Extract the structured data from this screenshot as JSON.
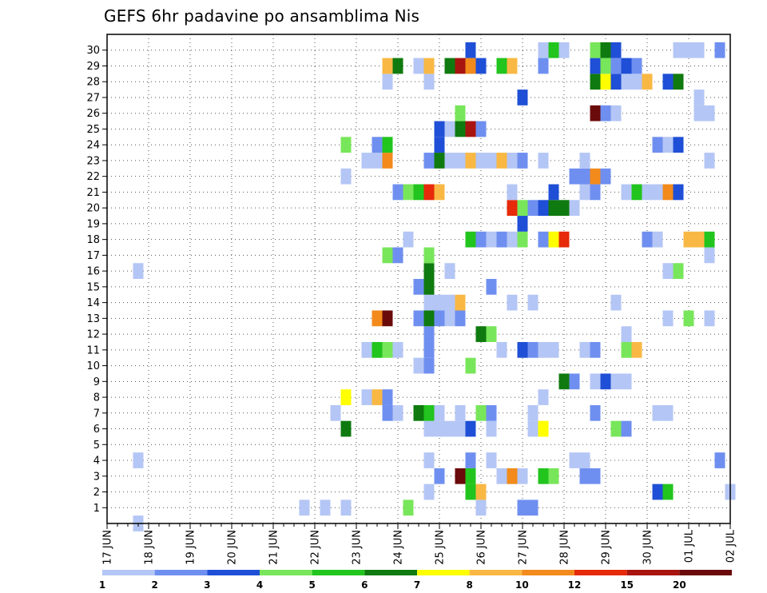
{
  "chart_data": {
    "type": "heatmap",
    "title": "GEFS 6hr padavine po ansamblima Nis",
    "x_ticks": [
      "17 JUN",
      "18 JUN",
      "19 JUN",
      "20 JUN",
      "21 JUN",
      "22 JUN",
      "23 JUN",
      "24 JUN",
      "25 JUN",
      "26 JUN",
      "27 JUN",
      "28 JUN",
      "29 JUN",
      "30 JUN",
      "01 JUL",
      "02 JUL"
    ],
    "y_ticks": [
      "1",
      "2",
      "3",
      "4",
      "5",
      "6",
      "7",
      "8",
      "9",
      "10",
      "11",
      "12",
      "13",
      "14",
      "15",
      "16",
      "17",
      "18",
      "19",
      "20",
      "21",
      "22",
      "23",
      "24",
      "25",
      "26",
      "27",
      "28",
      "29",
      "30"
    ],
    "x_steps_per_day": 4,
    "colorbar": {
      "levels": [
        "1",
        "2",
        "3",
        "4",
        "5",
        "6",
        "7",
        "8",
        "10",
        "12",
        "15",
        "20"
      ],
      "colors": [
        "#b4c6f5",
        "#6f8ff0",
        "#1f4fd6",
        "#78e65a",
        "#22c41e",
        "#0f7a0f",
        "#ffff00",
        "#f9b844",
        "#f28a1c",
        "#e62a0a",
        "#a8140f",
        "#6b0a0a"
      ]
    },
    "cells": [
      [
        3,
        0,
        0
      ],
      [
        19,
        1,
        0
      ],
      [
        21,
        1,
        0
      ],
      [
        23,
        1,
        0
      ],
      [
        29,
        1,
        3
      ],
      [
        36,
        1,
        0
      ],
      [
        40,
        1,
        1
      ],
      [
        41,
        1,
        1
      ],
      [
        31,
        2,
        0
      ],
      [
        35,
        2,
        4
      ],
      [
        36,
        2,
        7
      ],
      [
        53,
        2,
        2
      ],
      [
        54,
        2,
        4
      ],
      [
        60,
        2,
        0
      ],
      [
        32,
        3,
        1
      ],
      [
        34,
        3,
        11
      ],
      [
        35,
        3,
        4
      ],
      [
        38,
        3,
        0
      ],
      [
        39,
        3,
        8
      ],
      [
        40,
        3,
        0
      ],
      [
        42,
        3,
        4
      ],
      [
        43,
        3,
        3
      ],
      [
        46,
        3,
        1
      ],
      [
        47,
        3,
        1
      ],
      [
        3,
        4,
        0
      ],
      [
        31,
        4,
        0
      ],
      [
        35,
        4,
        1
      ],
      [
        37,
        4,
        0
      ],
      [
        45,
        4,
        0
      ],
      [
        46,
        4,
        0
      ],
      [
        59,
        4,
        1
      ],
      [
        23,
        6,
        5
      ],
      [
        31,
        6,
        0
      ],
      [
        32,
        6,
        0
      ],
      [
        33,
        6,
        0
      ],
      [
        34,
        6,
        0
      ],
      [
        35,
        6,
        2
      ],
      [
        37,
        6,
        0
      ],
      [
        41,
        6,
        0
      ],
      [
        42,
        6,
        6
      ],
      [
        49,
        6,
        3
      ],
      [
        50,
        6,
        1
      ],
      [
        22,
        7,
        0
      ],
      [
        27,
        7,
        1
      ],
      [
        28,
        7,
        0
      ],
      [
        30,
        7,
        5
      ],
      [
        31,
        7,
        4
      ],
      [
        32,
        7,
        0
      ],
      [
        34,
        7,
        0
      ],
      [
        36,
        7,
        3
      ],
      [
        37,
        7,
        1
      ],
      [
        41,
        7,
        0
      ],
      [
        47,
        7,
        1
      ],
      [
        53,
        7,
        0
      ],
      [
        54,
        7,
        0
      ],
      [
        23,
        8,
        6
      ],
      [
        25,
        8,
        0
      ],
      [
        26,
        8,
        7
      ],
      [
        27,
        8,
        1
      ],
      [
        42,
        8,
        0
      ],
      [
        44,
        9,
        5
      ],
      [
        45,
        9,
        1
      ],
      [
        47,
        9,
        0
      ],
      [
        48,
        9,
        2
      ],
      [
        49,
        9,
        0
      ],
      [
        50,
        9,
        0
      ],
      [
        30,
        10,
        0
      ],
      [
        31,
        10,
        1
      ],
      [
        35,
        10,
        3
      ],
      [
        25,
        11,
        0
      ],
      [
        26,
        11,
        4
      ],
      [
        27,
        11,
        3
      ],
      [
        28,
        11,
        0
      ],
      [
        31,
        11,
        1
      ],
      [
        38,
        11,
        0
      ],
      [
        40,
        11,
        2
      ],
      [
        41,
        11,
        1
      ],
      [
        42,
        11,
        0
      ],
      [
        43,
        11,
        0
      ],
      [
        46,
        11,
        0
      ],
      [
        47,
        11,
        1
      ],
      [
        50,
        11,
        3
      ],
      [
        51,
        11,
        7
      ],
      [
        31,
        12,
        1
      ],
      [
        36,
        12,
        5
      ],
      [
        37,
        12,
        3
      ],
      [
        50,
        12,
        0
      ],
      [
        26,
        13,
        8
      ],
      [
        27,
        13,
        11
      ],
      [
        30,
        13,
        1
      ],
      [
        31,
        13,
        5
      ],
      [
        32,
        13,
        1
      ],
      [
        33,
        13,
        0
      ],
      [
        34,
        13,
        1
      ],
      [
        54,
        13,
        0
      ],
      [
        56,
        13,
        3
      ],
      [
        58,
        13,
        0
      ],
      [
        31,
        14,
        0
      ],
      [
        32,
        14,
        0
      ],
      [
        33,
        14,
        0
      ],
      [
        34,
        14,
        7
      ],
      [
        39,
        14,
        0
      ],
      [
        41,
        14,
        0
      ],
      [
        49,
        14,
        0
      ],
      [
        30,
        15,
        1
      ],
      [
        31,
        15,
        5
      ],
      [
        37,
        15,
        1
      ],
      [
        3,
        16,
        0
      ],
      [
        31,
        16,
        5
      ],
      [
        33,
        16,
        0
      ],
      [
        54,
        16,
        0
      ],
      [
        55,
        16,
        3
      ],
      [
        27,
        17,
        3
      ],
      [
        28,
        17,
        1
      ],
      [
        31,
        17,
        3
      ],
      [
        58,
        17,
        0
      ],
      [
        29,
        18,
        0
      ],
      [
        35,
        18,
        4
      ],
      [
        36,
        18,
        1
      ],
      [
        37,
        18,
        0
      ],
      [
        38,
        18,
        1
      ],
      [
        39,
        18,
        0
      ],
      [
        40,
        18,
        3
      ],
      [
        42,
        18,
        1
      ],
      [
        43,
        18,
        6
      ],
      [
        44,
        18,
        9
      ],
      [
        52,
        18,
        1
      ],
      [
        53,
        18,
        0
      ],
      [
        56,
        18,
        7
      ],
      [
        57,
        18,
        7
      ],
      [
        58,
        18,
        4
      ],
      [
        40,
        19,
        2
      ],
      [
        39,
        20,
        9
      ],
      [
        40,
        20,
        3
      ],
      [
        41,
        20,
        1
      ],
      [
        42,
        20,
        2
      ],
      [
        43,
        20,
        5
      ],
      [
        44,
        20,
        5
      ],
      [
        45,
        20,
        0
      ],
      [
        28,
        21,
        1
      ],
      [
        29,
        21,
        3
      ],
      [
        30,
        21,
        4
      ],
      [
        31,
        21,
        9
      ],
      [
        32,
        21,
        7
      ],
      [
        39,
        21,
        0
      ],
      [
        43,
        21,
        2
      ],
      [
        46,
        21,
        0
      ],
      [
        47,
        21,
        1
      ],
      [
        50,
        21,
        0
      ],
      [
        51,
        21,
        4
      ],
      [
        52,
        21,
        0
      ],
      [
        53,
        21,
        0
      ],
      [
        54,
        21,
        8
      ],
      [
        55,
        21,
        2
      ],
      [
        23,
        22,
        0
      ],
      [
        45,
        22,
        1
      ],
      [
        46,
        22,
        1
      ],
      [
        47,
        22,
        8
      ],
      [
        48,
        22,
        1
      ],
      [
        25,
        23,
        0
      ],
      [
        26,
        23,
        0
      ],
      [
        27,
        23,
        8
      ],
      [
        31,
        23,
        1
      ],
      [
        32,
        23,
        5
      ],
      [
        33,
        23,
        0
      ],
      [
        34,
        23,
        0
      ],
      [
        35,
        23,
        7
      ],
      [
        36,
        23,
        0
      ],
      [
        37,
        23,
        0
      ],
      [
        38,
        23,
        7
      ],
      [
        39,
        23,
        0
      ],
      [
        40,
        23,
        1
      ],
      [
        42,
        23,
        0
      ],
      [
        46,
        23,
        0
      ],
      [
        58,
        23,
        0
      ],
      [
        23,
        24,
        3
      ],
      [
        26,
        24,
        1
      ],
      [
        27,
        24,
        4
      ],
      [
        32,
        24,
        2
      ],
      [
        53,
        24,
        1
      ],
      [
        54,
        24,
        0
      ],
      [
        55,
        24,
        2
      ],
      [
        32,
        25,
        2
      ],
      [
        33,
        25,
        0
      ],
      [
        34,
        25,
        5
      ],
      [
        35,
        25,
        10
      ],
      [
        36,
        25,
        1
      ],
      [
        34,
        26,
        3
      ],
      [
        47,
        26,
        11
      ],
      [
        48,
        26,
        1
      ],
      [
        49,
        26,
        0
      ],
      [
        57,
        26,
        0
      ],
      [
        58,
        26,
        0
      ],
      [
        40,
        27,
        2
      ],
      [
        57,
        27,
        0
      ],
      [
        27,
        28,
        0
      ],
      [
        31,
        28,
        0
      ],
      [
        47,
        28,
        5
      ],
      [
        48,
        28,
        6
      ],
      [
        49,
        28,
        2
      ],
      [
        50,
        28,
        0
      ],
      [
        51,
        28,
        0
      ],
      [
        52,
        28,
        7
      ],
      [
        54,
        28,
        2
      ],
      [
        55,
        28,
        5
      ],
      [
        27,
        29,
        7
      ],
      [
        28,
        29,
        5
      ],
      [
        30,
        29,
        0
      ],
      [
        31,
        29,
        7
      ],
      [
        33,
        29,
        5
      ],
      [
        34,
        29,
        10
      ],
      [
        35,
        29,
        8
      ],
      [
        36,
        29,
        2
      ],
      [
        38,
        29,
        4
      ],
      [
        39,
        29,
        7
      ],
      [
        42,
        29,
        1
      ],
      [
        47,
        29,
        2
      ],
      [
        48,
        29,
        3
      ],
      [
        49,
        29,
        1
      ],
      [
        50,
        29,
        2
      ],
      [
        51,
        29,
        1
      ],
      [
        35,
        30,
        2
      ],
      [
        42,
        30,
        0
      ],
      [
        43,
        30,
        4
      ],
      [
        44,
        30,
        0
      ],
      [
        47,
        30,
        3
      ],
      [
        48,
        30,
        5
      ],
      [
        49,
        30,
        2
      ],
      [
        55,
        30,
        0
      ],
      [
        56,
        30,
        0
      ],
      [
        57,
        30,
        0
      ],
      [
        59,
        30,
        1
      ]
    ]
  }
}
